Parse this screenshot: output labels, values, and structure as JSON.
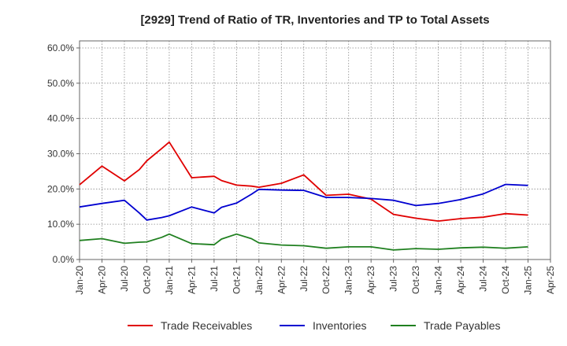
{
  "chart_data": {
    "type": "line",
    "title": "[2929]  Trend of Ratio of TR, Inventories and TP to Total Assets",
    "xlabel": "",
    "ylabel": "",
    "ylim": [
      0,
      62
    ],
    "y_ticks": [
      0,
      10,
      20,
      30,
      40,
      50,
      60
    ],
    "y_tick_labels": [
      "0.0%",
      "10.0%",
      "20.0%",
      "30.0%",
      "40.0%",
      "50.0%",
      "60.0%"
    ],
    "x_tick_labels": [
      "Jan-20",
      "Apr-20",
      "Jul-20",
      "Oct-20",
      "Jan-21",
      "Apr-21",
      "Jul-21",
      "Oct-21",
      "Jan-22",
      "Apr-22",
      "Jul-22",
      "Oct-22",
      "Jan-23",
      "Apr-23",
      "Jul-23",
      "Oct-23",
      "Jan-24",
      "Apr-24",
      "Jul-24",
      "Oct-24",
      "Jan-25",
      "Apr-25"
    ],
    "x": [
      "Jan-20",
      "Apr-20",
      "Jul-20",
      "Sep-20",
      "Oct-20",
      "Dec-20",
      "Jan-21",
      "Apr-21",
      "Jul-21",
      "Aug-21",
      "Oct-21",
      "Dec-21",
      "Jan-22",
      "Apr-22",
      "Jul-22",
      "Oct-22",
      "Jan-23",
      "Apr-23",
      "Jul-23",
      "Oct-23",
      "Jan-24",
      "Apr-24",
      "Jul-24",
      "Oct-24",
      "Jan-25"
    ],
    "series": [
      {
        "name": "Trade Receivables",
        "color": "#e00000",
        "values": [
          21.2,
          26.5,
          22.3,
          25.5,
          28.0,
          31.5,
          33.3,
          23.2,
          23.6,
          22.4,
          21.1,
          20.8,
          20.5,
          21.6,
          24.0,
          18.2,
          18.5,
          17.1,
          12.8,
          11.7,
          10.9,
          11.6,
          12.0,
          13.0,
          12.6
        ]
      },
      {
        "name": "Inventories",
        "color": "#0000d0",
        "values": [
          14.9,
          15.9,
          16.8,
          13.2,
          11.2,
          11.9,
          12.4,
          14.9,
          13.2,
          14.8,
          16.0,
          18.5,
          19.9,
          19.7,
          19.6,
          17.6,
          17.6,
          17.3,
          16.8,
          15.3,
          15.9,
          17.0,
          18.6,
          21.3,
          21.0
        ]
      },
      {
        "name": "Trade Payables",
        "color": "#208020",
        "values": [
          5.4,
          5.9,
          4.6,
          4.9,
          5.0,
          6.3,
          7.2,
          4.5,
          4.2,
          5.8,
          7.2,
          5.9,
          4.7,
          4.1,
          3.9,
          3.2,
          3.6,
          3.6,
          2.7,
          3.1,
          2.9,
          3.3,
          3.5,
          3.2,
          3.6
        ]
      }
    ],
    "legend_position": "bottom",
    "grid": true
  }
}
